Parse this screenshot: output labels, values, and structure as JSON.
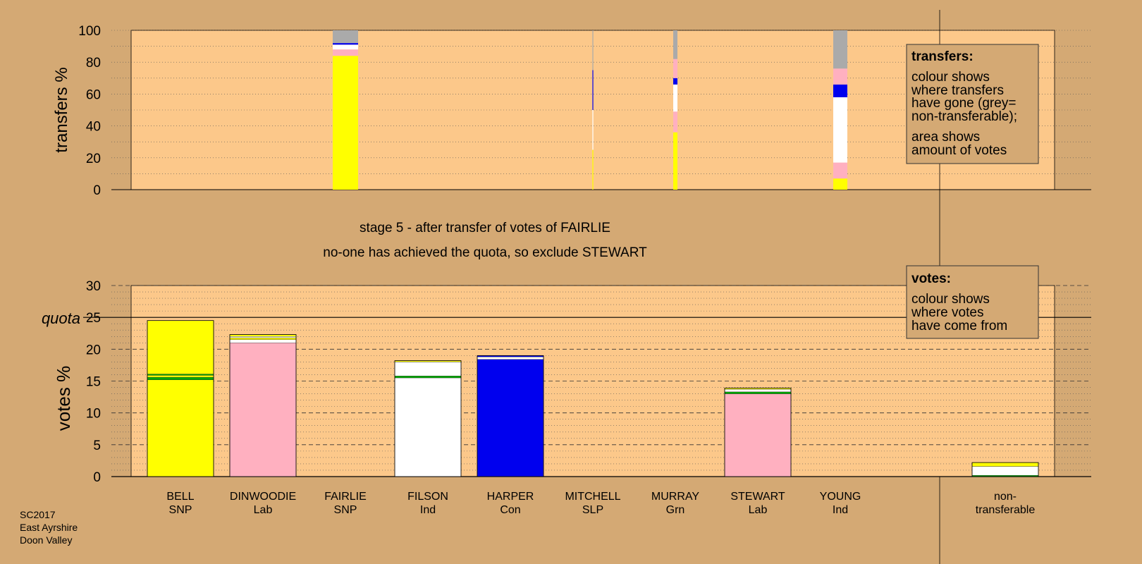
{
  "colors": {
    "page_bg": "#d4a974",
    "plot_bg": "#fcc88a",
    "SNP": "#ffff00",
    "Lab": "#ffb0c0",
    "Ind": "#ffffff",
    "Con": "#0000ee",
    "Grn": "#00aa00",
    "nontransferable": "#aaaaaa"
  },
  "headline": {
    "line1": "stage 5 - after transfer of votes of FAIRLIE",
    "line2": "no-one has achieved the quota, so exclude STEWART"
  },
  "footer": [
    "SC2017",
    "East Ayrshire",
    "Doon Valley"
  ],
  "legend_transfers": {
    "title": "transfers:",
    "lines1": [
      "colour shows",
      "where transfers",
      "have gone (grey=",
      "non-transferable);"
    ],
    "lines2": [
      "area shows",
      "amount of votes"
    ]
  },
  "legend_votes": {
    "title": "votes:",
    "lines": [
      "colour shows",
      "where votes",
      "have come from"
    ]
  },
  "chart_data": [
    {
      "type": "bar",
      "ylabel": "transfers %",
      "ylim": [
        0,
        100
      ],
      "yticks": [
        0,
        20,
        40,
        60,
        80,
        100
      ],
      "grid": true,
      "categories": [
        "BELL",
        "DINWOODIE",
        "FAIRLIE",
        "FILSON",
        "HARPER",
        "MITCHELL",
        "MURRAY",
        "STEWART",
        "YOUNG"
      ],
      "columns": [
        {
          "candidate": "FAIRLIE",
          "width_share": 0.9,
          "segments": [
            {
              "party": "SNP",
              "from": 0,
              "to": 84
            },
            {
              "party": "Lab",
              "from": 84,
              "to": 88
            },
            {
              "party": "Ind",
              "from": 88,
              "to": 91
            },
            {
              "party": "Con",
              "from": 91,
              "to": 92
            },
            {
              "party": "nontransferable",
              "from": 92,
              "to": 100
            }
          ]
        },
        {
          "candidate": "MITCHELL",
          "width_share": 0.03,
          "segments": [
            {
              "party": "SNP",
              "from": 0,
              "to": 25
            },
            {
              "party": "Ind",
              "from": 25,
              "to": 50
            },
            {
              "party": "Con",
              "from": 50,
              "to": 75
            },
            {
              "party": "nontransferable",
              "from": 75,
              "to": 100
            }
          ]
        },
        {
          "candidate": "MURRAY",
          "width_share": 0.15,
          "segments": [
            {
              "party": "SNP",
              "from": 0,
              "to": 36
            },
            {
              "party": "Lab",
              "from": 36,
              "to": 49
            },
            {
              "party": "Ind",
              "from": 49,
              "to": 66
            },
            {
              "party": "Con",
              "from": 66,
              "to": 70
            },
            {
              "party": "Lab",
              "from": 70,
              "to": 82
            },
            {
              "party": "nontransferable",
              "from": 82,
              "to": 100
            }
          ]
        },
        {
          "candidate": "YOUNG",
          "width_share": 0.5,
          "segments": [
            {
              "party": "SNP",
              "from": 0,
              "to": 7
            },
            {
              "party": "Lab",
              "from": 7,
              "to": 17
            },
            {
              "party": "Ind",
              "from": 17,
              "to": 58
            },
            {
              "party": "Con",
              "from": 58,
              "to": 66
            },
            {
              "party": "Lab",
              "from": 66,
              "to": 76
            },
            {
              "party": "nontransferable",
              "from": 76,
              "to": 100
            }
          ]
        }
      ]
    },
    {
      "type": "bar",
      "ylabel": "votes %",
      "ylim": [
        0,
        30
      ],
      "yticks": [
        0,
        5,
        10,
        15,
        20,
        25,
        30
      ],
      "quota": 25,
      "quota_label": "quota",
      "grid": true,
      "candidates": [
        {
          "name": "BELL",
          "party": "SNP",
          "segments": [
            {
              "party": "SNP",
              "from": 0,
              "to": 15.2
            },
            {
              "party": "Grn",
              "from": 15.2,
              "to": 15.6
            },
            {
              "party": "SNP",
              "from": 15.6,
              "to": 15.9
            },
            {
              "party": "Grn",
              "from": 15.9,
              "to": 16.1
            },
            {
              "party": "SNP",
              "from": 16.1,
              "to": 24.5
            }
          ]
        },
        {
          "name": "DINWOODIE",
          "party": "Lab",
          "segments": [
            {
              "party": "Lab",
              "from": 0,
              "to": 21.0
            },
            {
              "party": "Ind",
              "from": 21.0,
              "to": 21.5
            },
            {
              "party": "SNP",
              "from": 21.5,
              "to": 21.8
            },
            {
              "party": "Ind",
              "from": 21.8,
              "to": 22.0
            },
            {
              "party": "SNP",
              "from": 22.0,
              "to": 22.3
            }
          ]
        },
        {
          "name": "FAIRLIE",
          "party": "SNP",
          "segments": []
        },
        {
          "name": "FILSON",
          "party": "Ind",
          "segments": [
            {
              "party": "Ind",
              "from": 0,
              "to": 15.5
            },
            {
              "party": "Grn",
              "from": 15.5,
              "to": 15.8
            },
            {
              "party": "Ind",
              "from": 15.8,
              "to": 18.0
            },
            {
              "party": "SNP",
              "from": 18.0,
              "to": 18.2
            }
          ]
        },
        {
          "name": "HARPER",
          "party": "Con",
          "segments": [
            {
              "party": "Con",
              "from": 0,
              "to": 18.4
            },
            {
              "party": "Ind",
              "from": 18.4,
              "to": 18.8
            },
            {
              "party": "Con",
              "from": 18.8,
              "to": 19.0
            }
          ]
        },
        {
          "name": "MITCHELL",
          "party": "SLP",
          "segments": []
        },
        {
          "name": "MURRAY",
          "party": "Grn",
          "segments": []
        },
        {
          "name": "STEWART",
          "party": "Lab",
          "segments": [
            {
              "party": "Lab",
              "from": 0,
              "to": 13.0
            },
            {
              "party": "Grn",
              "from": 13.0,
              "to": 13.3
            },
            {
              "party": "Ind",
              "from": 13.3,
              "to": 13.7
            },
            {
              "party": "SNP",
              "from": 13.7,
              "to": 13.9
            }
          ]
        },
        {
          "name": "YOUNG",
          "party": "Ind",
          "segments": []
        },
        {
          "name": "non-\ntransferable",
          "party": "",
          "segments": [
            {
              "party": "Grn",
              "from": 0,
              "to": 0.2
            },
            {
              "party": "Ind",
              "from": 0.2,
              "to": 1.6
            },
            {
              "party": "SNP",
              "from": 1.6,
              "to": 2.2
            }
          ]
        }
      ]
    }
  ]
}
